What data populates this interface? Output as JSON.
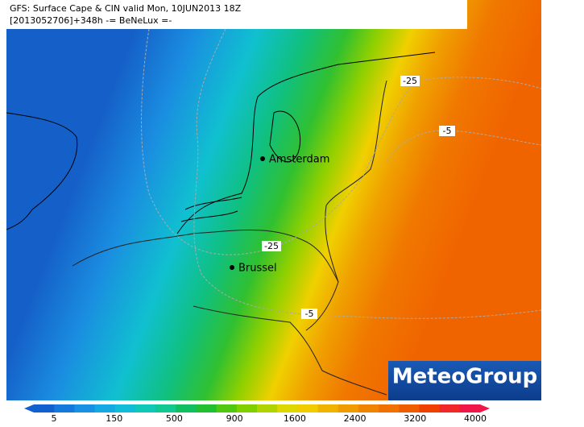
{
  "header": {
    "line1": "GFS: Surface Cape & CIN valid Mon, 10JUN2013 18Z",
    "line2": "[2013052706]+348h -= BeNeLux =-"
  },
  "cities": [
    {
      "label": "Amsterdam"
    },
    {
      "label": "Brussel"
    }
  ],
  "contour_labels": [
    "-25",
    "-5",
    "-25",
    "-5"
  ],
  "logo": "MeteoGroup",
  "colorbar": {
    "ticks": [
      5,
      150,
      500,
      900,
      1600,
      2400,
      3200,
      4000
    ],
    "colors": [
      "#1060d0",
      "#1478dc",
      "#1890e4",
      "#14a8e4",
      "#10bcd8",
      "#10c8b8",
      "#10c890",
      "#10c060",
      "#20c030",
      "#50c810",
      "#80d000",
      "#b0d400",
      "#dcd800",
      "#f0cc00",
      "#f0b400",
      "#f09c00",
      "#f08400",
      "#f07000",
      "#f05c00",
      "#f04000",
      "#f02828",
      "#f01848"
    ]
  }
}
